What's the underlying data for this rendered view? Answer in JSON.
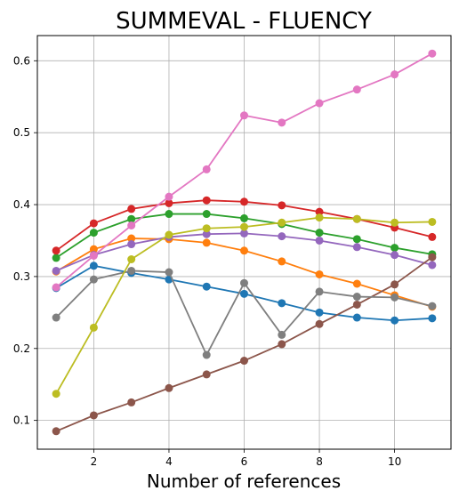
{
  "chart_data": {
    "type": "line",
    "title": "SUMMEVAL - FLUENCY",
    "xlabel": "Number of references",
    "ylabel": "",
    "xlim": [
      0.5,
      11.5
    ],
    "ylim": [
      0.06,
      0.635
    ],
    "x_ticks": [
      2,
      4,
      6,
      8,
      10
    ],
    "y_ticks": [
      0.1,
      0.2,
      0.3,
      0.4,
      0.5,
      0.6
    ],
    "grid": true,
    "legend": "none",
    "x": [
      1,
      2,
      3,
      4,
      5,
      6,
      7,
      8,
      9,
      10,
      11
    ],
    "series": [
      {
        "color": "#1f77b4",
        "values": [
          0.284,
          0.315,
          0.305,
          0.296,
          0.286,
          0.276,
          0.263,
          0.25,
          0.243,
          0.239,
          0.242
        ]
      },
      {
        "color": "#ff7f0e",
        "values": [
          0.307,
          0.338,
          0.353,
          0.352,
          0.347,
          0.336,
          0.321,
          0.303,
          0.29,
          0.274,
          0.258
        ]
      },
      {
        "color": "#2ca02c",
        "values": [
          0.326,
          0.361,
          0.38,
          0.387,
          0.387,
          0.381,
          0.373,
          0.361,
          0.352,
          0.34,
          0.331
        ]
      },
      {
        "color": "#d62728",
        "values": [
          0.336,
          0.374,
          0.394,
          0.402,
          0.406,
          0.404,
          0.399,
          0.39,
          0.38,
          0.368,
          0.355
        ]
      },
      {
        "color": "#9467bd",
        "values": [
          0.308,
          0.33,
          0.345,
          0.355,
          0.359,
          0.36,
          0.356,
          0.35,
          0.341,
          0.33,
          0.316
        ]
      },
      {
        "color": "#8c564b",
        "values": [
          0.085,
          0.107,
          0.125,
          0.145,
          0.164,
          0.183,
          0.206,
          0.234,
          0.261,
          0.289,
          0.327
        ]
      },
      {
        "color": "#e377c2",
        "values": [
          0.285,
          0.329,
          0.371,
          0.411,
          0.449,
          0.524,
          0.514,
          0.541,
          0.56,
          0.581,
          0.61
        ]
      },
      {
        "color": "#7f7f7f",
        "values": [
          0.243,
          0.296,
          0.308,
          0.306,
          0.191,
          0.291,
          0.219,
          0.279,
          0.272,
          0.271,
          0.259
        ]
      },
      {
        "color": "#bcbd22",
        "values": [
          0.137,
          0.229,
          0.324,
          0.358,
          0.367,
          0.369,
          0.375,
          0.382,
          0.38,
          0.375,
          0.376
        ]
      }
    ]
  }
}
